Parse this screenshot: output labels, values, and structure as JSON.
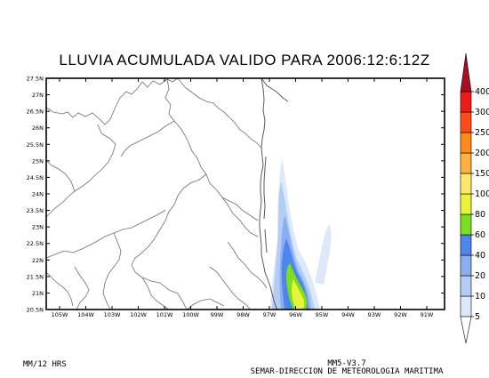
{
  "title": "LLUVIA ACUMULADA VALIDO PARA 2006:12:6:12Z",
  "footer": {
    "left": "MM/12 HRS",
    "model": "MM5-V3.7",
    "agency": "SEMAR-DIRECCION DE METEOROLOGIA MARITIMA"
  },
  "map": {
    "lat_labels": [
      "20.5N",
      "21N",
      "21.5N",
      "22N",
      "22.5N",
      "23N",
      "23.5N",
      "24N",
      "24.5N",
      "25N",
      "25.5N",
      "26N",
      "26.5N",
      "27N",
      "27.5N"
    ],
    "lon_labels": [
      "105W",
      "104W",
      "103W",
      "102W",
      "101W",
      "100W",
      "99W",
      "98W",
      "97W",
      "96W",
      "95W",
      "94W",
      "93W",
      "92W",
      "91W"
    ]
  },
  "colorbar": {
    "levels": [
      "5",
      "10",
      "20",
      "40",
      "60",
      "80",
      "100",
      "150",
      "200",
      "250",
      "300",
      "400"
    ],
    "colors": [
      "#dce9fb",
      "#b4cdf5",
      "#8caef0",
      "#4f86ec",
      "#7adf1e",
      "#e8f43a",
      "#ffe86c",
      "#ffb040",
      "#ff8a1a",
      "#ff4a1a",
      "#ee1a1a",
      "#a80f25"
    ]
  }
}
